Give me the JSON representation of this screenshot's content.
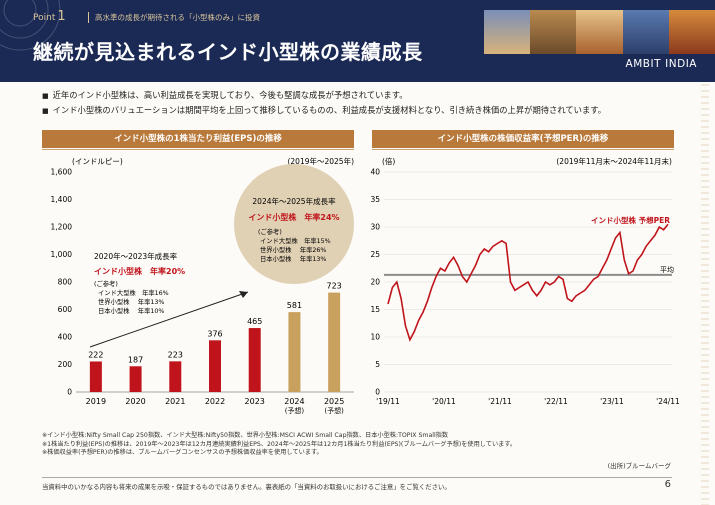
{
  "header": {
    "point_prefix": "Point",
    "point_number": "1",
    "subtitle": "高水準の成長が期待される「小型株のみ」に投資",
    "title": "継続が見込まれるインド小型株の業績成長",
    "brand_main": "AMBIT",
    "brand_sub": "INDIA"
  },
  "bullets": [
    "近年のインド小型株は、高い利益成長を実現しており、今後も堅調な成長が予想されています。",
    "インド小型株のバリュエーションは期間平均を上回って推移しているものの、利益成長が支援材料となり、引き続き株価の上昇が期待されています。"
  ],
  "left_panel": {
    "header": "インド小型株の1株当たり利益(EPS)の推移",
    "unit": "(インドルピー)",
    "period": "(2019年～2025年)",
    "box1": {
      "title": "2020年～2023年成長率",
      "highlight": "インド小型株　年率20%",
      "ref": "(ご参考)",
      "lines": [
        "インド大型株　年率16%",
        "世界小型株　 年率13%",
        "日本小型株　 年率10%"
      ]
    },
    "box2": {
      "title": "2024年～2025年成長率",
      "highlight": "インド小型株　年率24%",
      "ref": "(ご参考)",
      "lines": [
        "インド大型株　年率15%",
        "世界小型株　 年率26%",
        "日本小型株　 年率13%"
      ]
    }
  },
  "right_panel": {
    "header": "インド小型株の株価収益率(予想PER)の推移",
    "unit": "(倍)",
    "period": "(2019年11月末～2024年11月末)",
    "series_label": "インド小型株 予想PER",
    "avg_label": "平均"
  },
  "chart_data": [
    {
      "type": "bar",
      "title": "インド小型株の1株当たり利益(EPS)の推移",
      "ylabel": "(インドルピー)",
      "categories": [
        "2019",
        "2020",
        "2021",
        "2022",
        "2023",
        "2024\n(予想)",
        "2025\n(予想)"
      ],
      "category_lines": [
        [
          "2019"
        ],
        [
          "2020"
        ],
        [
          "2021"
        ],
        [
          "2022"
        ],
        [
          "2023"
        ],
        [
          "2024",
          "(予想)"
        ],
        [
          "2025",
          "(予想)"
        ]
      ],
      "values": [
        222,
        187,
        223,
        376,
        465,
        581,
        723
      ],
      "value_labels": [
        "222",
        "187",
        "223",
        "376",
        "465",
        "581",
        "723"
      ],
      "colors": [
        "#c0141c",
        "#c0141c",
        "#c0141c",
        "#c0141c",
        "#c0141c",
        "#c9a15e",
        "#c9a15e"
      ],
      "ylim": [
        0,
        1600
      ],
      "yticks": [
        0,
        200,
        400,
        600,
        800,
        1000,
        1200,
        1400,
        1600
      ],
      "ytick_labels": [
        "0",
        "200",
        "400",
        "600",
        "800",
        "1,000",
        "1,200",
        "1,400",
        "1,600"
      ],
      "grid": false
    },
    {
      "type": "line",
      "title": "インド小型株の株価収益率(予想PER)の推移",
      "ylabel": "(倍)",
      "x_ticks": [
        "'19/11",
        "'20/11",
        "'21/11",
        "'22/11",
        "'23/11",
        "'24/11"
      ],
      "ylim": [
        0,
        40
      ],
      "yticks": [
        0,
        5,
        10,
        15,
        20,
        25,
        30,
        35,
        40
      ],
      "average": 21.3,
      "series": [
        {
          "name": "インド小型株 予想PER",
          "color": "#c0141c",
          "values": [
            16,
            19,
            20,
            17,
            12,
            9.5,
            11,
            13,
            14.5,
            16.5,
            19,
            21,
            22.5,
            22,
            23.5,
            24.5,
            23,
            21,
            20,
            21.5,
            23,
            25,
            26,
            25.5,
            26.5,
            27,
            27.5,
            27,
            20,
            18.5,
            19,
            19.5,
            20,
            18.5,
            17.5,
            18.5,
            20,
            19.5,
            20,
            21,
            20.5,
            17,
            16.5,
            17.5,
            18,
            18.5,
            19.5,
            20.5,
            21,
            22.5,
            24,
            26,
            28,
            29,
            24,
            21.5,
            22,
            24,
            25,
            26.5,
            27.5,
            28.5,
            30,
            29.5,
            30.5
          ]
        }
      ],
      "grid": true
    }
  ],
  "footnotes": [
    "※インド小型株:Nifty Small Cap 250指数、インド大型株:Nifty50指数、世界小型株:MSCI ACWI Small Cap指数、日本小型株:TOPIX Small指数",
    "※1株当たり利益(EPS)の推移は、2019年～2023年は12カ月連続実績利益EPS、2024年～2025年は12カ月1株当たり利益(EPS)(ブルームバーグ予想)を使用しています。",
    "※株価収益率(予想PER)の推移は、ブルームバーグコンセンサスの予想株価収益率を使用しています。"
  ],
  "source": "(出所)ブルームバーグ",
  "disclaimer": "当資料中のいかなる内容も将来の成果を示唆・保証するものではありません。裏表紙の「当資料のお取扱いにおけるご注意」をご覧ください。",
  "page_number": "6"
}
